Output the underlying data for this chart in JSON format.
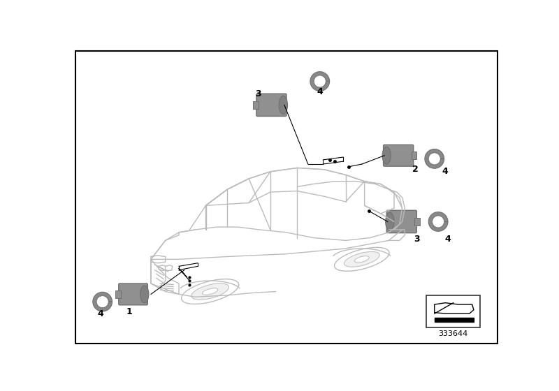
{
  "bg_color": "#ffffff",
  "border_color": "#000000",
  "fig_width": 8.0,
  "fig_height": 5.6,
  "dpi": 100,
  "part_number": "333644",
  "car_line_color": "#bbbbbb",
  "car_lw": 1.0,
  "sensor_color": "#909090",
  "sensor_dark": "#707070",
  "sensor_mid": "#808080",
  "ring_color": "#888888",
  "line_color": "#000000",
  "text_color": "#000000",
  "label_fontsize": 9,
  "partnum_fontsize": 8
}
